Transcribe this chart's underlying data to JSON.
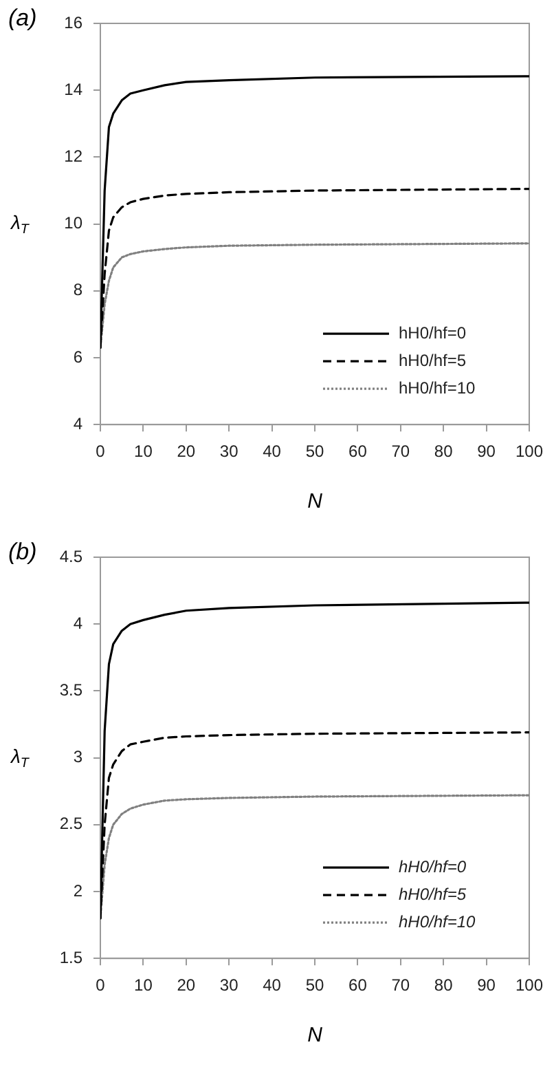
{
  "chart_data": [
    {
      "type": "line",
      "title": "(a)",
      "xlabel": "N",
      "ylabel": "λ$_{T}$",
      "x": [
        0,
        1,
        2,
        3,
        5,
        7,
        10,
        15,
        20,
        30,
        50,
        100
      ],
      "xlim": [
        0,
        100
      ],
      "xticks": [
        0,
        10,
        20,
        30,
        40,
        50,
        60,
        70,
        80,
        90,
        100
      ],
      "ylim": [
        4,
        16
      ],
      "yticks": [
        4,
        6,
        8,
        10,
        12,
        14,
        16
      ],
      "grid": false,
      "legend": "bottom right",
      "marker": "none",
      "series": [
        {
          "name": "hH0/hf=0",
          "color": "#000000",
          "line_style": "solid",
          "values": [
            6.3,
            11,
            12.9,
            13.3,
            13.7,
            13.9,
            14.0,
            14.15,
            14.25,
            14.3,
            14.38,
            14.42
          ]
        },
        {
          "name": "hH0/hf=5",
          "color": "#000000",
          "line_style": "dashed",
          "values": [
            6.3,
            8.5,
            9.8,
            10.2,
            10.5,
            10.65,
            10.75,
            10.85,
            10.9,
            10.95,
            11.0,
            11.05
          ]
        },
        {
          "name": "hH0/hf=10",
          "color": "#808080",
          "line_style": "dotted",
          "values": [
            6.3,
            7.6,
            8.3,
            8.7,
            9.0,
            9.1,
            9.18,
            9.25,
            9.3,
            9.35,
            9.38,
            9.42
          ]
        }
      ]
    },
    {
      "type": "line",
      "title": "(b)",
      "xlabel": "N",
      "ylabel": "λ$_{T}$",
      "x": [
        0,
        1,
        2,
        3,
        5,
        7,
        10,
        15,
        20,
        30,
        50,
        100
      ],
      "xlim": [
        0,
        100
      ],
      "xticks": [
        0,
        10,
        20,
        30,
        40,
        50,
        60,
        70,
        80,
        90,
        100
      ],
      "ylim": [
        1.5,
        4.5
      ],
      "yticks": [
        1.5,
        2,
        2.5,
        3,
        3.5,
        4,
        4.5
      ],
      "grid": false,
      "legend": "bottom right",
      "marker": "none",
      "series": [
        {
          "name": "hH0/hf=0",
          "color": "#000000",
          "line_style": "solid",
          "values": [
            1.8,
            3.2,
            3.7,
            3.85,
            3.95,
            4.0,
            4.03,
            4.07,
            4.1,
            4.12,
            4.14,
            4.16
          ]
        },
        {
          "name": "hH0/hf=5",
          "color": "#000000",
          "line_style": "dashed",
          "values": [
            1.8,
            2.5,
            2.85,
            2.95,
            3.05,
            3.1,
            3.12,
            3.15,
            3.16,
            3.17,
            3.18,
            3.19
          ]
        },
        {
          "name": "hH0/hf=10",
          "color": "#808080",
          "line_style": "dotted",
          "values": [
            1.8,
            2.2,
            2.4,
            2.5,
            2.58,
            2.62,
            2.65,
            2.68,
            2.69,
            2.7,
            2.71,
            2.72
          ]
        }
      ]
    }
  ]
}
